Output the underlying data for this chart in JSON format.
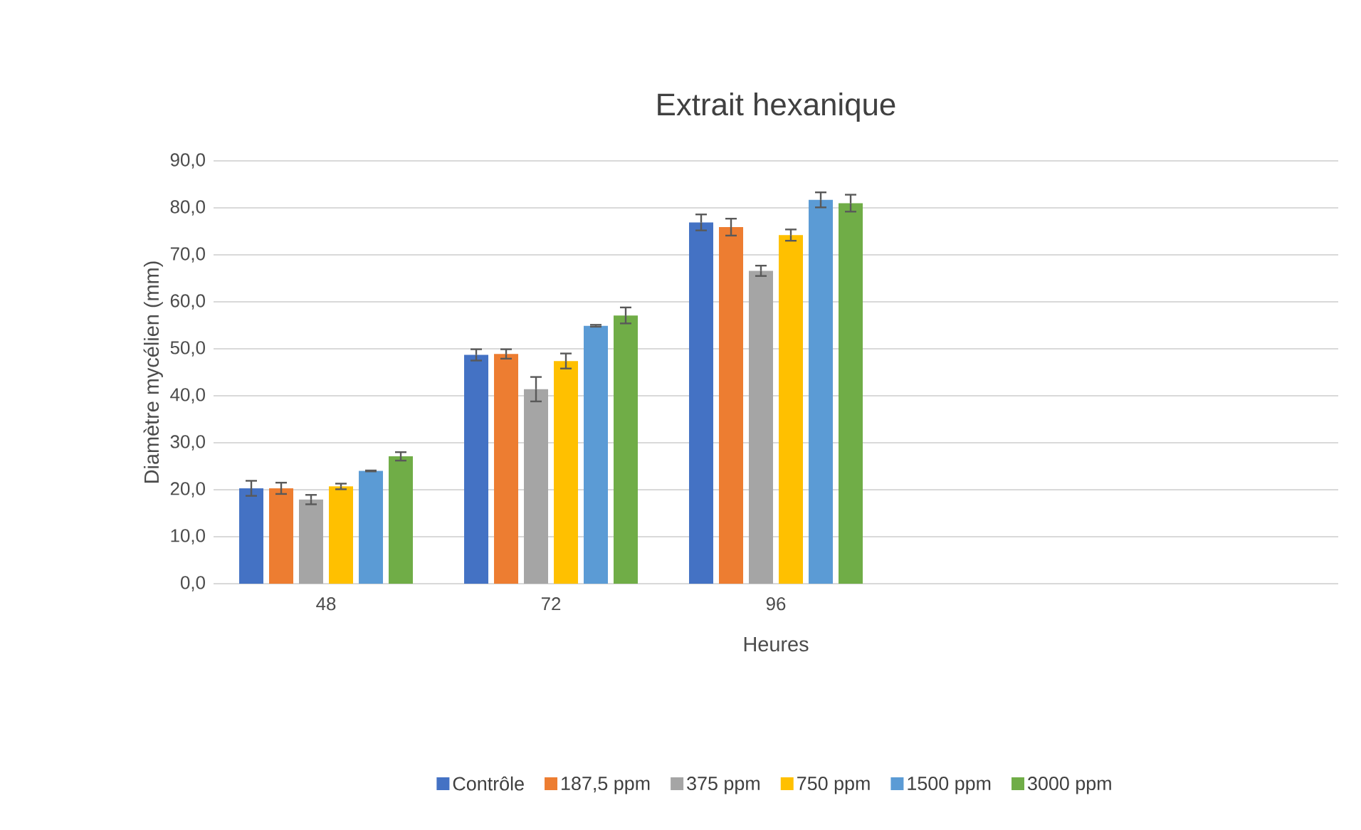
{
  "chart_data": {
    "type": "bar",
    "title": "Extrait hexanique",
    "xlabel": "Heures",
    "ylabel": "Diamètre mycélien (mm)",
    "categories": [
      "48",
      "72",
      "96",
      null,
      null
    ],
    "ylim": [
      0,
      90
    ],
    "yticks": [
      {
        "value": 0,
        "label": "0,0"
      },
      {
        "value": 10,
        "label": "10,0"
      },
      {
        "value": 20,
        "label": "20,0"
      },
      {
        "value": 30,
        "label": "30,0"
      },
      {
        "value": 40,
        "label": "40,0"
      },
      {
        "value": 50,
        "label": "50,0"
      },
      {
        "value": 60,
        "label": "60,0"
      },
      {
        "value": 70,
        "label": "70,0"
      },
      {
        "value": 80,
        "label": "80,0"
      },
      {
        "value": 90,
        "label": "90,0"
      }
    ],
    "grid": "y",
    "legend": "bottom",
    "series": [
      {
        "name": "Contrôle",
        "color": "#4472c4",
        "values": [
          20.3,
          48.7,
          76.9,
          null,
          null
        ],
        "errors": [
          1.6,
          1.2,
          1.7,
          null,
          null
        ]
      },
      {
        "name": "187,5 ppm",
        "color": "#ed7d31",
        "values": [
          20.3,
          48.9,
          75.9,
          null,
          null
        ],
        "errors": [
          1.2,
          1.0,
          1.8,
          null,
          null
        ]
      },
      {
        "name": "375 ppm",
        "color": "#a5a5a5",
        "values": [
          17.9,
          41.4,
          66.6,
          null,
          null
        ],
        "errors": [
          1.0,
          2.6,
          1.1,
          null,
          null
        ]
      },
      {
        "name": "750 ppm",
        "color": "#ffc000",
        "values": [
          20.7,
          47.4,
          74.2,
          null,
          null
        ],
        "errors": [
          0.6,
          1.6,
          1.2,
          null,
          null
        ]
      },
      {
        "name": "1500 ppm",
        "color": "#5b9bd5",
        "values": [
          24.0,
          54.9,
          81.7,
          null,
          null
        ],
        "errors": [
          0.1,
          0.2,
          1.6,
          null,
          null
        ]
      },
      {
        "name": "3000 ppm",
        "color": "#70ad47",
        "values": [
          27.1,
          57.1,
          81.0,
          null,
          null
        ],
        "errors": [
          0.9,
          1.7,
          1.8,
          null,
          null
        ]
      }
    ]
  }
}
